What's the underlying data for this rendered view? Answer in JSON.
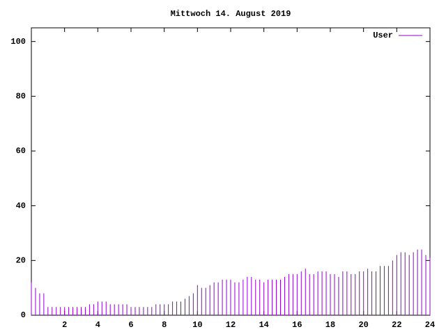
{
  "chart_data": {
    "type": "impulse",
    "title": "Mittwoch 14. August 2019",
    "x": [
      0,
      0.25,
      0.5,
      0.75,
      1,
      1.25,
      1.5,
      1.75,
      2,
      2.25,
      2.5,
      2.75,
      3,
      3.25,
      3.5,
      3.75,
      4,
      4.25,
      4.5,
      4.75,
      5,
      5.25,
      5.5,
      5.75,
      6,
      6.25,
      6.5,
      6.75,
      7,
      7.25,
      7.5,
      7.75,
      8,
      8.25,
      8.5,
      8.75,
      9,
      9.25,
      9.5,
      9.75,
      10,
      10.25,
      10.5,
      10.75,
      11,
      11.25,
      11.5,
      11.75,
      12,
      12.25,
      12.5,
      12.75,
      13,
      13.25,
      13.5,
      13.75,
      14,
      14.25,
      14.5,
      14.75,
      15,
      15.25,
      15.5,
      15.75,
      16,
      16.25,
      16.5,
      16.75,
      17,
      17.25,
      17.5,
      17.75,
      18,
      18.25,
      18.5,
      18.75,
      19,
      19.25,
      19.5,
      19.75,
      20,
      20.25,
      20.5,
      20.75,
      21,
      21.25,
      21.5,
      21.75,
      22,
      22.25,
      22.5,
      22.75,
      23,
      23.25,
      23.5,
      23.75,
      24
    ],
    "series": [
      {
        "name": "User",
        "color": "#9400d3",
        "values": [
          12,
          10,
          8,
          8,
          3,
          3,
          3,
          3,
          3,
          3,
          3,
          3,
          3,
          3,
          4,
          4,
          5,
          5,
          5,
          4,
          4,
          4,
          4,
          4,
          3,
          3,
          3,
          3,
          3,
          3,
          4,
          4,
          4,
          4,
          5,
          5,
          5,
          6,
          7,
          8,
          11,
          10,
          10,
          11,
          12,
          12,
          13,
          13,
          13,
          12,
          12,
          13,
          14,
          14,
          13,
          13,
          12,
          13,
          13,
          13,
          13,
          14,
          15,
          15,
          15,
          16,
          17,
          15,
          15,
          16,
          16,
          16,
          15,
          15,
          14,
          16,
          16,
          15,
          15,
          16,
          16,
          17,
          16,
          16,
          18,
          18,
          18,
          20,
          22,
          23,
          23,
          22,
          23,
          24,
          24,
          22,
          21
        ]
      }
    ],
    "xlim": [
      0,
      24
    ],
    "ylim": [
      0,
      105
    ],
    "xticks": [
      2,
      4,
      6,
      8,
      10,
      12,
      14,
      16,
      18,
      20,
      22,
      24
    ],
    "yticks": [
      0,
      20,
      40,
      60,
      80,
      100
    ]
  }
}
